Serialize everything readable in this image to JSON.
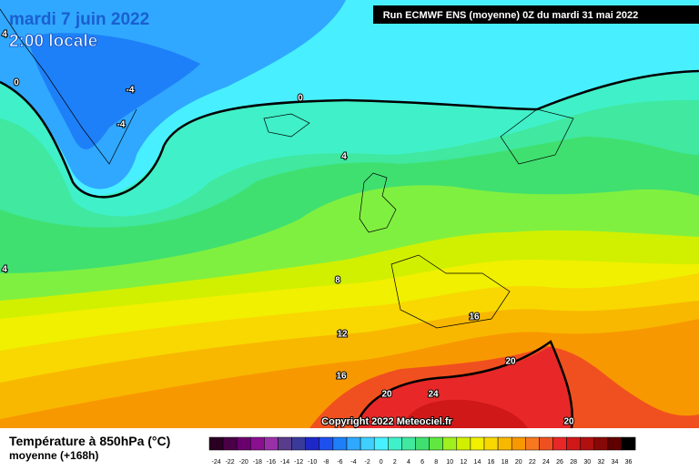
{
  "header": {
    "date": "mardi 7 juin 2022",
    "time": "2:00 locale",
    "run": "Run ECMWF ENS (moyenne) 0Z du mardi 31 mai 2022"
  },
  "map": {
    "contour_labels": [
      4,
      0,
      -4,
      -4,
      0,
      4,
      4,
      8,
      12,
      16,
      16,
      20,
      20,
      24,
      20
    ],
    "copyright": "Copyright 2022 Meteociel.fr"
  },
  "legend": {
    "title": "Température à 850hPa (°C)",
    "subtitle": "moyenne  (+168h)",
    "scale": [
      {
        "value": -24,
        "color": "#2a0022"
      },
      {
        "value": -22,
        "color": "#4a0046"
      },
      {
        "value": -20,
        "color": "#6a006e"
      },
      {
        "value": -18,
        "color": "#8a1090"
      },
      {
        "value": -16,
        "color": "#9a30a8"
      },
      {
        "value": -14,
        "color": "#5a3c8c"
      },
      {
        "value": -12,
        "color": "#3a3a9a"
      },
      {
        "value": -10,
        "color": "#1e28c8"
      },
      {
        "value": -8,
        "color": "#1e50f0"
      },
      {
        "value": -6,
        "color": "#1e80f8"
      },
      {
        "value": -4,
        "color": "#30a8ff"
      },
      {
        "value": -2,
        "color": "#40d0ff"
      },
      {
        "value": 0,
        "color": "#48f0ff"
      },
      {
        "value": 2,
        "color": "#40f0c8"
      },
      {
        "value": 4,
        "color": "#40e8a0"
      },
      {
        "value": 6,
        "color": "#40e070"
      },
      {
        "value": 8,
        "color": "#60e840"
      },
      {
        "value": 10,
        "color": "#a0f020"
      },
      {
        "value": 12,
        "color": "#d0f000"
      },
      {
        "value": 14,
        "color": "#f0f000"
      },
      {
        "value": 16,
        "color": "#f8d800"
      },
      {
        "value": 18,
        "color": "#f8b800"
      },
      {
        "value": 20,
        "color": "#f89800"
      },
      {
        "value": 22,
        "color": "#f87820"
      },
      {
        "value": 24,
        "color": "#f05020"
      },
      {
        "value": 26,
        "color": "#e82828"
      },
      {
        "value": 28,
        "color": "#d01818"
      },
      {
        "value": 30,
        "color": "#b01010"
      },
      {
        "value": 32,
        "color": "#880808"
      },
      {
        "value": 34,
        "color": "#600000"
      },
      {
        "value": 36,
        "color": "#000000"
      }
    ]
  }
}
